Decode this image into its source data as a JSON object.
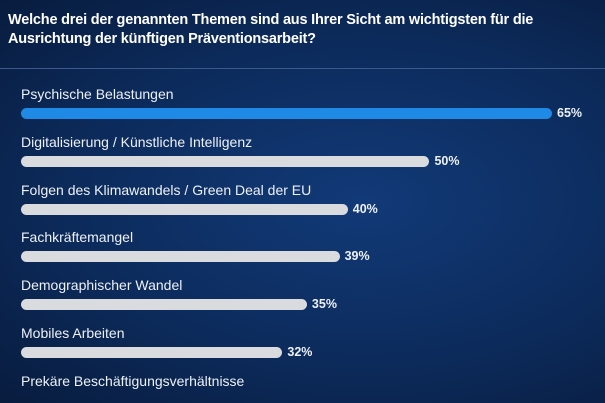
{
  "chart_data": {
    "type": "bar",
    "orientation": "horizontal",
    "title": "Welche drei der genannten Themen sind aus Ihrer Sicht am wichtigsten für die Ausrichtung der künftigen Präventionsarbeit?",
    "categories": [
      "Psychische Belastungen",
      "Digitalisierung / Künstliche Intelligenz",
      "Folgen des Klimawandels / Green Deal der EU",
      "Fachkräftemangel",
      "Demographischer Wandel",
      "Mobiles Arbeiten",
      "Prekäre Beschäftigungsverhältnisse"
    ],
    "values": [
      65,
      50,
      40,
      39,
      35,
      32,
      null
    ],
    "value_labels": [
      "65%",
      "50%",
      "40%",
      "39%",
      "35%",
      "32%",
      ""
    ],
    "unit": "%",
    "xlim": [
      0,
      65
    ],
    "grid": false,
    "colors": {
      "highlight": "#1e8ae6",
      "default": "#d9dbde",
      "background": "#0c2b5c"
    }
  }
}
